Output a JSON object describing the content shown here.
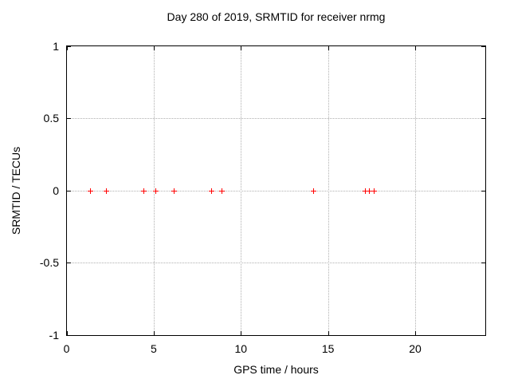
{
  "chart_data": {
    "type": "scatter",
    "title": "Day 280 of 2019, SRMTID for receiver nrmg",
    "xlabel": "GPS time / hours",
    "ylabel": "SRMTID / TECUs",
    "xlim": [
      0,
      24
    ],
    "ylim": [
      -1,
      1
    ],
    "xticks": [
      0,
      5,
      10,
      15,
      20
    ],
    "xtick_labels": [
      "0",
      "5",
      "10",
      "15",
      "20"
    ],
    "yticks": [
      1,
      0.5,
      0,
      -0.5,
      -1
    ],
    "ytick_labels": [
      "1",
      "0.5",
      "0",
      "-0.5",
      "-1"
    ],
    "grid": true,
    "legend": "none",
    "marker_style": "plus",
    "series": [
      {
        "name": "SRMTID",
        "x": [
          1.33,
          2.28,
          4.4,
          5.1,
          6.15,
          8.3,
          8.9,
          14.15,
          17.1,
          17.35,
          17.6
        ],
        "y": [
          0,
          0,
          0,
          0,
          0,
          0,
          0,
          0,
          0,
          0,
          0
        ]
      }
    ]
  },
  "colors": {
    "marker": "#ff0000",
    "grid": "#b0b0b0",
    "axis": "#000000",
    "background": "#ffffff",
    "text": "#000000"
  }
}
